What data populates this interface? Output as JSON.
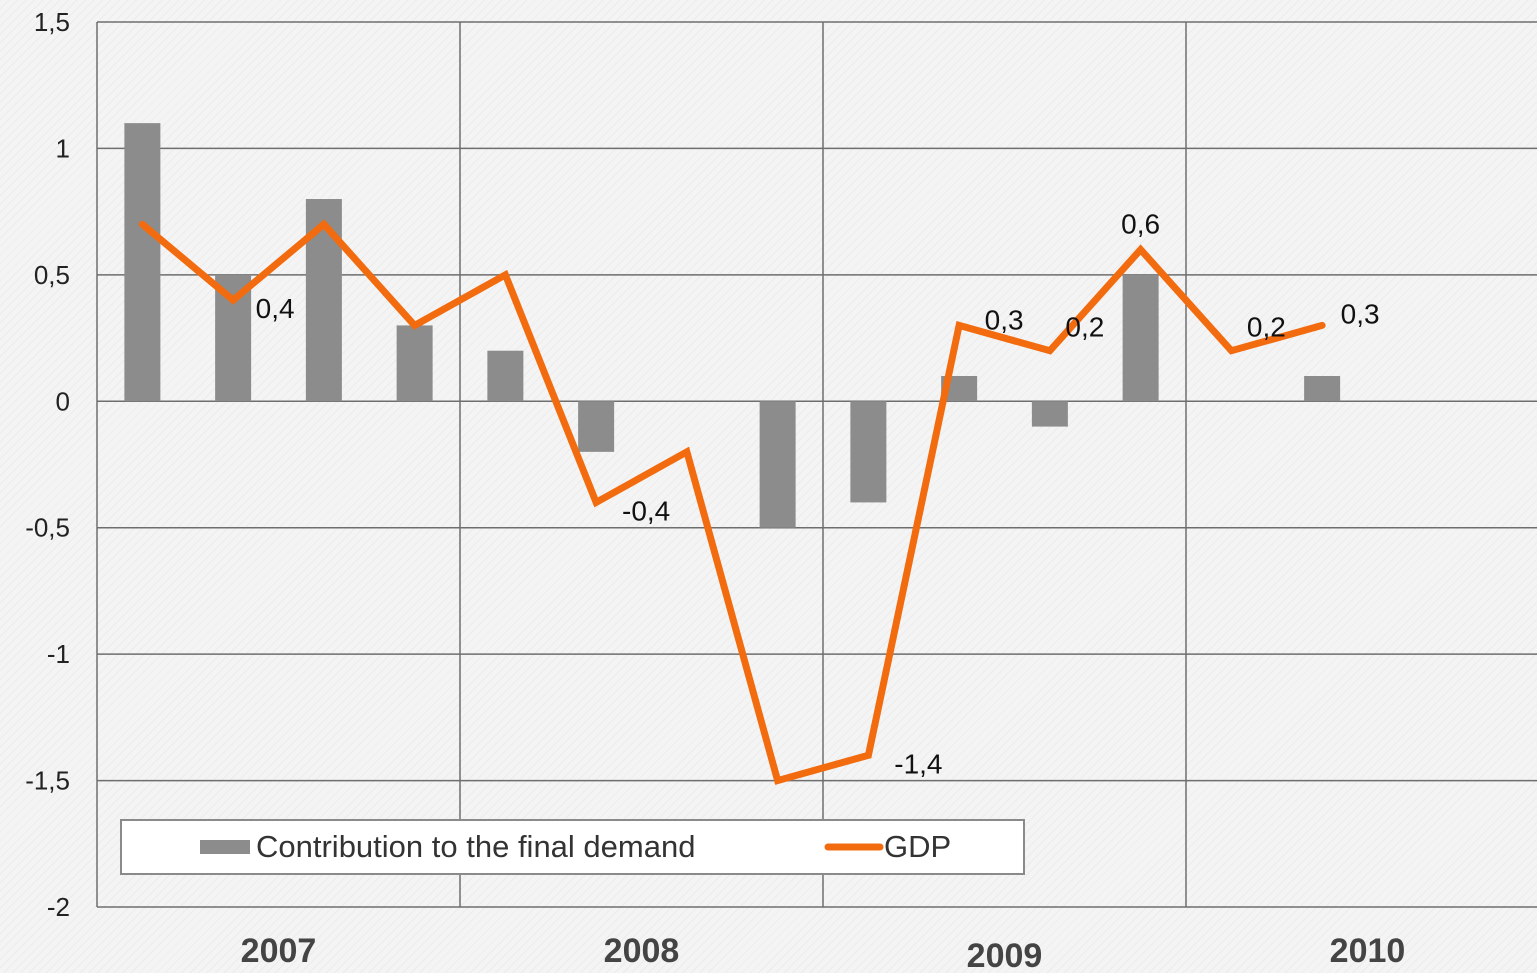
{
  "chart_data": {
    "type": "bar",
    "title": "",
    "xlabel": "",
    "ylabel": "",
    "ylim": [
      -2,
      1.5
    ],
    "yticks": [
      1.5,
      1,
      0.5,
      0,
      -0.5,
      -1,
      -1.5,
      -2
    ],
    "ytick_labels": [
      "1,5",
      "1",
      "0,5",
      "0",
      "-0,5",
      "-1",
      "-1,5",
      "-2"
    ],
    "grid": true,
    "years": [
      "2007",
      "2008",
      "2009",
      "2010"
    ],
    "categories": [
      "2007 Q1",
      "2007 Q2",
      "2007 Q3",
      "2007 Q4",
      "2008 Q1",
      "2008 Q2",
      "2008 Q3",
      "2008 Q4",
      "2009 Q1",
      "2009 Q2",
      "2009 Q3",
      "2009 Q4",
      "2010 Q1",
      "2010 Q2"
    ],
    "series": [
      {
        "name": "Contribution to the final demand",
        "type": "bar",
        "color": "#8c8c8c",
        "values": [
          1.1,
          0.5,
          0.8,
          0.3,
          0.2,
          -0.2,
          null,
          -0.5,
          -0.4,
          0.1,
          -0.1,
          0.5,
          null,
          0.1
        ]
      },
      {
        "name": "GDP",
        "type": "line",
        "color": "#f26b0f",
        "values": [
          0.7,
          0.4,
          0.7,
          0.3,
          0.5,
          -0.4,
          -0.2,
          -1.5,
          -1.4,
          0.3,
          0.2,
          0.6,
          0.2,
          0.3
        ]
      }
    ],
    "data_labels": [
      {
        "index": 1,
        "text": "0,4"
      },
      {
        "index": 5,
        "text": "-0,4"
      },
      {
        "index": 8,
        "text": "-1,4"
      },
      {
        "index": 9,
        "text": "0,3"
      },
      {
        "index": 10,
        "text": "0,2"
      },
      {
        "index": 11,
        "text": "0,6"
      },
      {
        "index": 12,
        "text": "0,2"
      },
      {
        "index": 13,
        "text": "0,3"
      }
    ],
    "legend": {
      "placement": "bottom-left",
      "items": [
        "Contribution to the final demand",
        "GDP"
      ]
    }
  }
}
